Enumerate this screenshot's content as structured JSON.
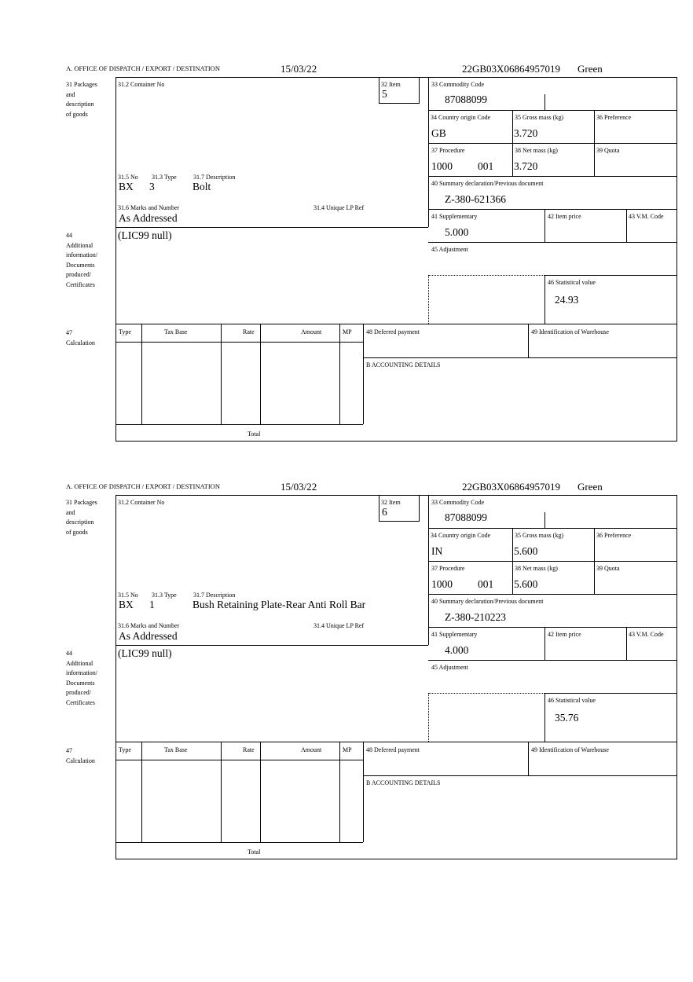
{
  "labels": {
    "office": "A.  OFFICE OF DISPATCH / EXPORT / DESTINATION",
    "packages": "31 Packages\nand\ndescription\nof goods",
    "container": "31.2 Container No",
    "item": "32 Item",
    "no": "31.5 No",
    "type": "31.3 Type",
    "description": "31.7 Description",
    "marks": "31.6 Marks and Number",
    "unique_lp": "31.4 Unique LP Ref",
    "additional": "44\nAdditional\ninformation/\nDocuments\nproduced/\nCertificates",
    "commodity": "33 Commodity Code",
    "country": "34 Country origin Code",
    "gross": "35 Gross mass (kg)",
    "preference": "36 Preference",
    "procedure": "37 Procedure",
    "net": "38 Net mass (kg)",
    "quota": "39 Quota",
    "summary": "40 Summary declaration/Previous document",
    "supplementary": "41 Supplementary",
    "item_price": "42 Item price",
    "vm_code": "43 V.M. Code",
    "adjustment": "45 Adjustment",
    "stat_value": "46 Statistical value",
    "calculation": "47\nCalculation",
    "calc_cols": [
      "Type",
      "Tax Base",
      "Rate",
      "Amount",
      "MP"
    ],
    "total": "Total",
    "deferred": "48 Deferred payment",
    "warehouse": "49 Identification of Warehouse",
    "accounting": "B ACCOUNTING DETAILS"
  },
  "forms": [
    {
      "date": "15/03/22",
      "reference": "22GB03X06864957019",
      "route": "Green",
      "item": "5",
      "no": "BX",
      "type": "3",
      "description": "Bolt",
      "marks": "As Addressed",
      "additional": "(LIC99 null)",
      "commodity": "87088099",
      "country": "GB",
      "gross": "3.720",
      "procedure": "1000",
      "procedure_add": "001",
      "net": "3.720",
      "summary": "Z-380-621366",
      "supplementary": "5.000",
      "stat_value": "24.93"
    },
    {
      "date": "15/03/22",
      "reference": "22GB03X06864957019",
      "route": "Green",
      "item": "6",
      "no": "BX",
      "type": "1",
      "description": "Bush Retaining Plate-Rear Anti Roll Bar",
      "marks": "As Addressed",
      "additional": "(LIC99 null)",
      "commodity": "87088099",
      "country": "IN",
      "gross": "5.600",
      "procedure": "1000",
      "procedure_add": "001",
      "net": "5.600",
      "summary": "Z-380-210223",
      "supplementary": "4.000",
      "stat_value": "35.76"
    }
  ]
}
